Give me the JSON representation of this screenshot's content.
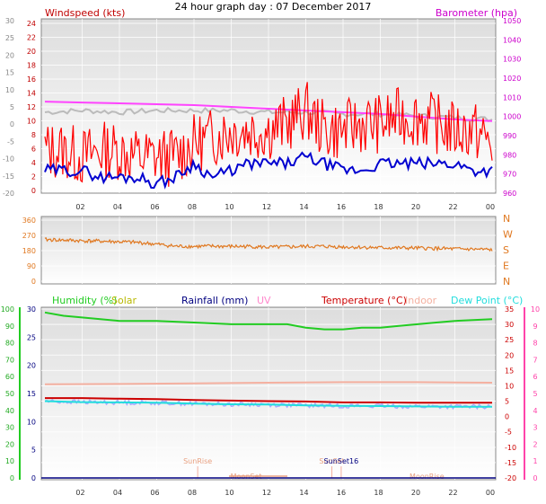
{
  "chart_data": [
    {
      "type": "line",
      "title": "24 hour graph day : 07 December 2017",
      "left_axis_label": "Windspeed (kts)",
      "right_axis_label": "Barometer (hpa)",
      "outer_left_ticks": [
        "30",
        "25",
        "20",
        "15",
        "10",
        "5",
        "0",
        "-5",
        "-10",
        "-15",
        "-20"
      ],
      "left_ticks": [
        "24",
        "22",
        "20",
        "18",
        "16",
        "14",
        "12",
        "10",
        "8",
        "6",
        "4",
        "2",
        "0"
      ],
      "right_ticks": [
        "1050",
        "1040",
        "1030",
        "1020",
        "1010",
        "1000",
        "990",
        "980",
        "970",
        "960"
      ],
      "x_ticks": [
        "02",
        "04",
        "06",
        "08",
        "10",
        "12",
        "14",
        "16",
        "18",
        "20",
        "22",
        "00"
      ],
      "ylim_left": [
        0,
        25
      ],
      "ylim_right": [
        958,
        1052
      ],
      "colors": {
        "gust": "#ff0000",
        "wind": "#0000d0",
        "barometer": "#ff44ff",
        "gray": "#bbbbbb",
        "left_label": "#c00000",
        "right_label": "#cc00cc"
      },
      "series": [
        {
          "name": "barometer",
          "values": [
            [
              0,
              1008
            ],
            [
              2,
              1007.5
            ],
            [
              4,
              1007
            ],
            [
              6,
              1006.5
            ],
            [
              8,
              1006
            ],
            [
              10,
              1005
            ],
            [
              12,
              1004
            ],
            [
              14,
              1003
            ],
            [
              16,
              1002
            ],
            [
              18,
              1001
            ],
            [
              20,
              999.5
            ],
            [
              22,
              998
            ],
            [
              24,
              997
            ]
          ]
        },
        {
          "name": "gray",
          "values": [
            [
              0,
              1002
            ],
            [
              2,
              1003
            ],
            [
              4,
              1002
            ],
            [
              6,
              1003
            ],
            [
              8,
              1003
            ],
            [
              10,
              1003
            ],
            [
              12,
              1002
            ],
            [
              14,
              1002
            ],
            [
              16,
              1001
            ],
            [
              18,
              1001
            ],
            [
              20,
              1000
            ],
            [
              22,
              999
            ],
            [
              24,
              998
            ]
          ]
        },
        {
          "name": "gust",
          "values": [
            [
              0,
              6
            ],
            [
              1,
              6
            ],
            [
              2,
              5
            ],
            [
              3,
              6
            ],
            [
              4,
              6
            ],
            [
              5,
              5
            ],
            [
              6,
              5
            ],
            [
              7,
              5
            ],
            [
              8,
              7
            ],
            [
              9,
              8
            ],
            [
              10,
              9
            ],
            [
              11,
              9
            ],
            [
              12,
              9
            ],
            [
              13,
              10
            ],
            [
              14,
              12
            ],
            [
              15,
              9
            ],
            [
              16,
              9
            ],
            [
              17,
              10
            ],
            [
              18,
              10
            ],
            [
              19,
              11
            ],
            [
              20,
              11
            ],
            [
              21,
              10
            ],
            [
              22,
              9
            ],
            [
              23,
              9
            ],
            [
              24,
              7
            ]
          ]
        },
        {
          "name": "wind",
          "values": [
            [
              0,
              3
            ],
            [
              1,
              3
            ],
            [
              2,
              3
            ],
            [
              3,
              2
            ],
            [
              4,
              2
            ],
            [
              5,
              2
            ],
            [
              6,
              1
            ],
            [
              7,
              2
            ],
            [
              8,
              4
            ],
            [
              9,
              2
            ],
            [
              10,
              3
            ],
            [
              11,
              4
            ],
            [
              12,
              4
            ],
            [
              13,
              4
            ],
            [
              14,
              5
            ],
            [
              15,
              4
            ],
            [
              16,
              3
            ],
            [
              17,
              3
            ],
            [
              18,
              4
            ],
            [
              19,
              4
            ],
            [
              20,
              4
            ],
            [
              21,
              4
            ],
            [
              22,
              4
            ],
            [
              23,
              3
            ],
            [
              24,
              3
            ]
          ]
        }
      ]
    },
    {
      "type": "line",
      "left_ticks": [
        "360",
        "270",
        "180",
        "90",
        "0"
      ],
      "right_ticks": [
        "N",
        "W",
        "S",
        "E",
        "N"
      ],
      "ylim": [
        0,
        360
      ],
      "colors": {
        "direction": "#e07820"
      },
      "series": [
        {
          "name": "direction",
          "values": [
            [
              0,
              245
            ],
            [
              1,
              242
            ],
            [
              2,
              238
            ],
            [
              3,
              236
            ],
            [
              4,
              232
            ],
            [
              5,
              228
            ],
            [
              6,
              218
            ],
            [
              7,
              206
            ],
            [
              8,
              205
            ],
            [
              9,
              206
            ],
            [
              10,
              205
            ],
            [
              11,
              205
            ],
            [
              12,
              200
            ],
            [
              13,
              202
            ],
            [
              14,
              205
            ],
            [
              15,
              205
            ],
            [
              16,
              202
            ],
            [
              17,
              200
            ],
            [
              18,
              197
            ],
            [
              19,
              196
            ],
            [
              20,
              195
            ],
            [
              21,
              193
            ],
            [
              22,
              190
            ],
            [
              23,
              188
            ],
            [
              24,
              185
            ]
          ]
        }
      ]
    },
    {
      "type": "line",
      "labels": {
        "humidity": "Humidity (%)",
        "solar": "Solar",
        "rainfall": "Rainfall (mm)",
        "uv": "UV",
        "temperature": "Temperature (°C)",
        "indoor": "Indoor",
        "dewpoint": "Dew Point (°C)"
      },
      "outer_left_ticks": [
        "100",
        "90",
        "80",
        "70",
        "60",
        "50",
        "40",
        "30",
        "20",
        "10",
        "0"
      ],
      "left_ticks": [
        "30",
        "25",
        "20",
        "15",
        "10",
        "5",
        "0"
      ],
      "right_ticks": [
        "35",
        "30",
        "25",
        "20",
        "15",
        "10",
        "5",
        "0",
        "-5",
        "-10",
        "-15",
        "-20"
      ],
      "far_right_ticks": [
        "10",
        "9",
        "8",
        "7",
        "6",
        "5",
        "4",
        "3",
        "2",
        "1",
        "0"
      ],
      "x_ticks": [
        "02",
        "04",
        "06",
        "08",
        "10",
        "12",
        "14",
        "16",
        "18",
        "20",
        "22",
        "00"
      ],
      "annotations": [
        {
          "text": "SunRise",
          "hour": 8.2
        },
        {
          "text": "SunSet",
          "hour": 15.4
        },
        {
          "text": "MoonSet",
          "hour": 10.8
        },
        {
          "text": "MoonRise",
          "hour": 20.5
        },
        {
          "text": "SunSet16",
          "hour": 15.9
        }
      ],
      "ylim_humidity": [
        0,
        100
      ],
      "ylim_temperature": [
        -20,
        35
      ],
      "colors": {
        "humidity": "#22cc22",
        "solar": "#b8b800",
        "rainfall": "#000080",
        "uv": "#ff88cc",
        "temperature": "#cc0000",
        "indoor": "#f4b0a0",
        "dewpoint": "#22dddd",
        "baseline": "#aaaaff"
      },
      "series": [
        {
          "name": "humidity",
          "values": [
            [
              0,
              98
            ],
            [
              1,
              96
            ],
            [
              2,
              95
            ],
            [
              4,
              93
            ],
            [
              6,
              93
            ],
            [
              8,
              92
            ],
            [
              10,
              91
            ],
            [
              12,
              91
            ],
            [
              13,
              91
            ],
            [
              14,
              89
            ],
            [
              15,
              88
            ],
            [
              16,
              88
            ],
            [
              17,
              89
            ],
            [
              18,
              89
            ],
            [
              19,
              90
            ],
            [
              20,
              91
            ],
            [
              21,
              92
            ],
            [
              22,
              93
            ],
            [
              24,
              94
            ]
          ]
        },
        {
          "name": "temperature",
          "values": [
            [
              0,
              6
            ],
            [
              2,
              6
            ],
            [
              4,
              5.8
            ],
            [
              6,
              5.7
            ],
            [
              8,
              5.4
            ],
            [
              10,
              5.2
            ],
            [
              12,
              5
            ],
            [
              14,
              4.9
            ],
            [
              16,
              4.6
            ],
            [
              18,
              4.6
            ],
            [
              20,
              4.5
            ],
            [
              22,
              4.5
            ],
            [
              24,
              4.5
            ]
          ]
        },
        {
          "name": "dewpoint",
          "values": [
            [
              0,
              5
            ],
            [
              2,
              4.7
            ],
            [
              4,
              4.6
            ],
            [
              6,
              4.5
            ],
            [
              8,
              4.2
            ],
            [
              10,
              4
            ],
            [
              12,
              3.9
            ],
            [
              14,
              3.6
            ],
            [
              16,
              3.5
            ],
            [
              18,
              3.4
            ],
            [
              20,
              3.3
            ],
            [
              22,
              3.2
            ],
            [
              24,
              3.2
            ]
          ]
        },
        {
          "name": "indoor",
          "values": [
            [
              0,
              10.5
            ],
            [
              4,
              10.6
            ],
            [
              8,
              10.8
            ],
            [
              12,
              11
            ],
            [
              16,
              11.2
            ],
            [
              20,
              11.2
            ],
            [
              24,
              11
            ]
          ]
        }
      ]
    }
  ]
}
